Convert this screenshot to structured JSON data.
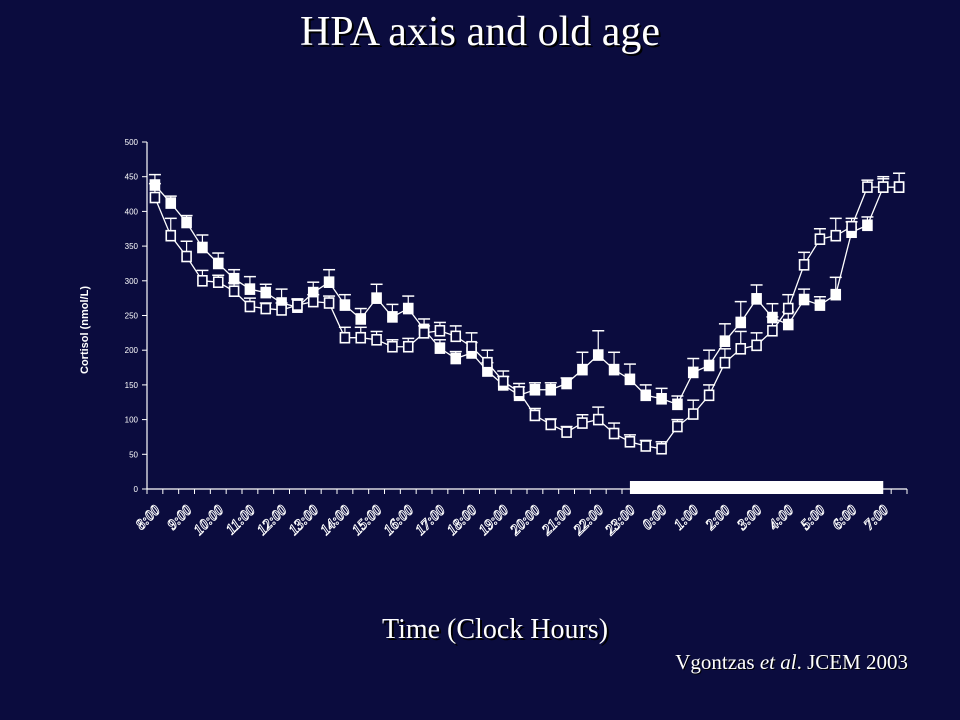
{
  "slide": {
    "title": "HPA axis and old age",
    "citation_author": "Vgontzas",
    "citation_etal": "et al",
    "citation_rest": ". JCEM 2003"
  },
  "chart_data": {
    "type": "line",
    "title": "",
    "xlabel": "Time (Clock Hours)",
    "ylabel": "Cortisol (nmol/L)",
    "ylim": [
      0,
      500
    ],
    "yticks": [
      0,
      50,
      100,
      150,
      200,
      250,
      300,
      350,
      400,
      450,
      500
    ],
    "x_tick_labels": [
      "8:00",
      "9:00",
      "10:00",
      "11:00",
      "12:00",
      "13:00",
      "14:00",
      "15:00",
      "16:00",
      "17:00",
      "18:00",
      "19:00",
      "20:00",
      "21:00",
      "22:00",
      "23:00",
      "0:00",
      "1:00",
      "2:00",
      "3:00",
      "4:00",
      "5:00",
      "6:00",
      "7:00"
    ],
    "grid": false,
    "legend": "none",
    "sleep_period_bar": {
      "start": "23:00",
      "end": "7:00",
      "color": "#ffffff"
    },
    "series": [
      {
        "marker": "filled-square",
        "color": "#ffffff",
        "values": [
          438,
          412,
          384,
          348,
          325,
          303,
          288,
          283,
          268,
          262,
          283,
          298,
          265,
          245,
          275,
          248,
          260,
          230,
          203,
          188,
          196,
          170,
          150,
          135,
          143,
          143,
          152,
          172,
          193,
          172,
          158,
          135,
          130,
          122,
          168,
          178,
          213,
          240,
          274,
          247,
          237,
          273,
          265,
          280,
          370,
          380,
          435,
          435
        ],
        "errors": [
          15,
          10,
          10,
          18,
          15,
          13,
          18,
          12,
          20,
          12,
          15,
          18,
          15,
          15,
          20,
          18,
          18,
          15,
          12,
          10,
          15,
          12,
          12,
          12,
          10,
          10,
          8,
          25,
          35,
          25,
          22,
          15,
          15,
          12,
          20,
          22,
          25,
          30,
          20,
          20,
          18,
          15,
          12,
          25,
          15,
          12,
          15,
          20
        ]
      },
      {
        "marker": "open-square",
        "color": "#ffffff",
        "values": [
          420,
          365,
          335,
          300,
          298,
          285,
          263,
          260,
          258,
          265,
          270,
          268,
          218,
          218,
          215,
          205,
          205,
          225,
          228,
          220,
          205,
          182,
          155,
          140,
          106,
          93,
          82,
          95,
          100,
          80,
          68,
          62,
          58,
          90,
          108,
          135,
          182,
          202,
          207,
          228,
          260,
          323,
          360,
          365,
          378,
          435,
          435,
          435
        ],
        "errors": [
          20,
          25,
          22,
          15,
          10,
          12,
          12,
          8,
          10,
          8,
          10,
          10,
          15,
          15,
          12,
          10,
          12,
          10,
          12,
          15,
          20,
          18,
          15,
          12,
          10,
          8,
          8,
          12,
          18,
          15,
          10,
          8,
          10,
          10,
          20,
          15,
          20,
          25,
          18,
          20,
          20,
          18,
          15,
          25,
          12,
          10,
          12,
          20
        ]
      }
    ]
  }
}
